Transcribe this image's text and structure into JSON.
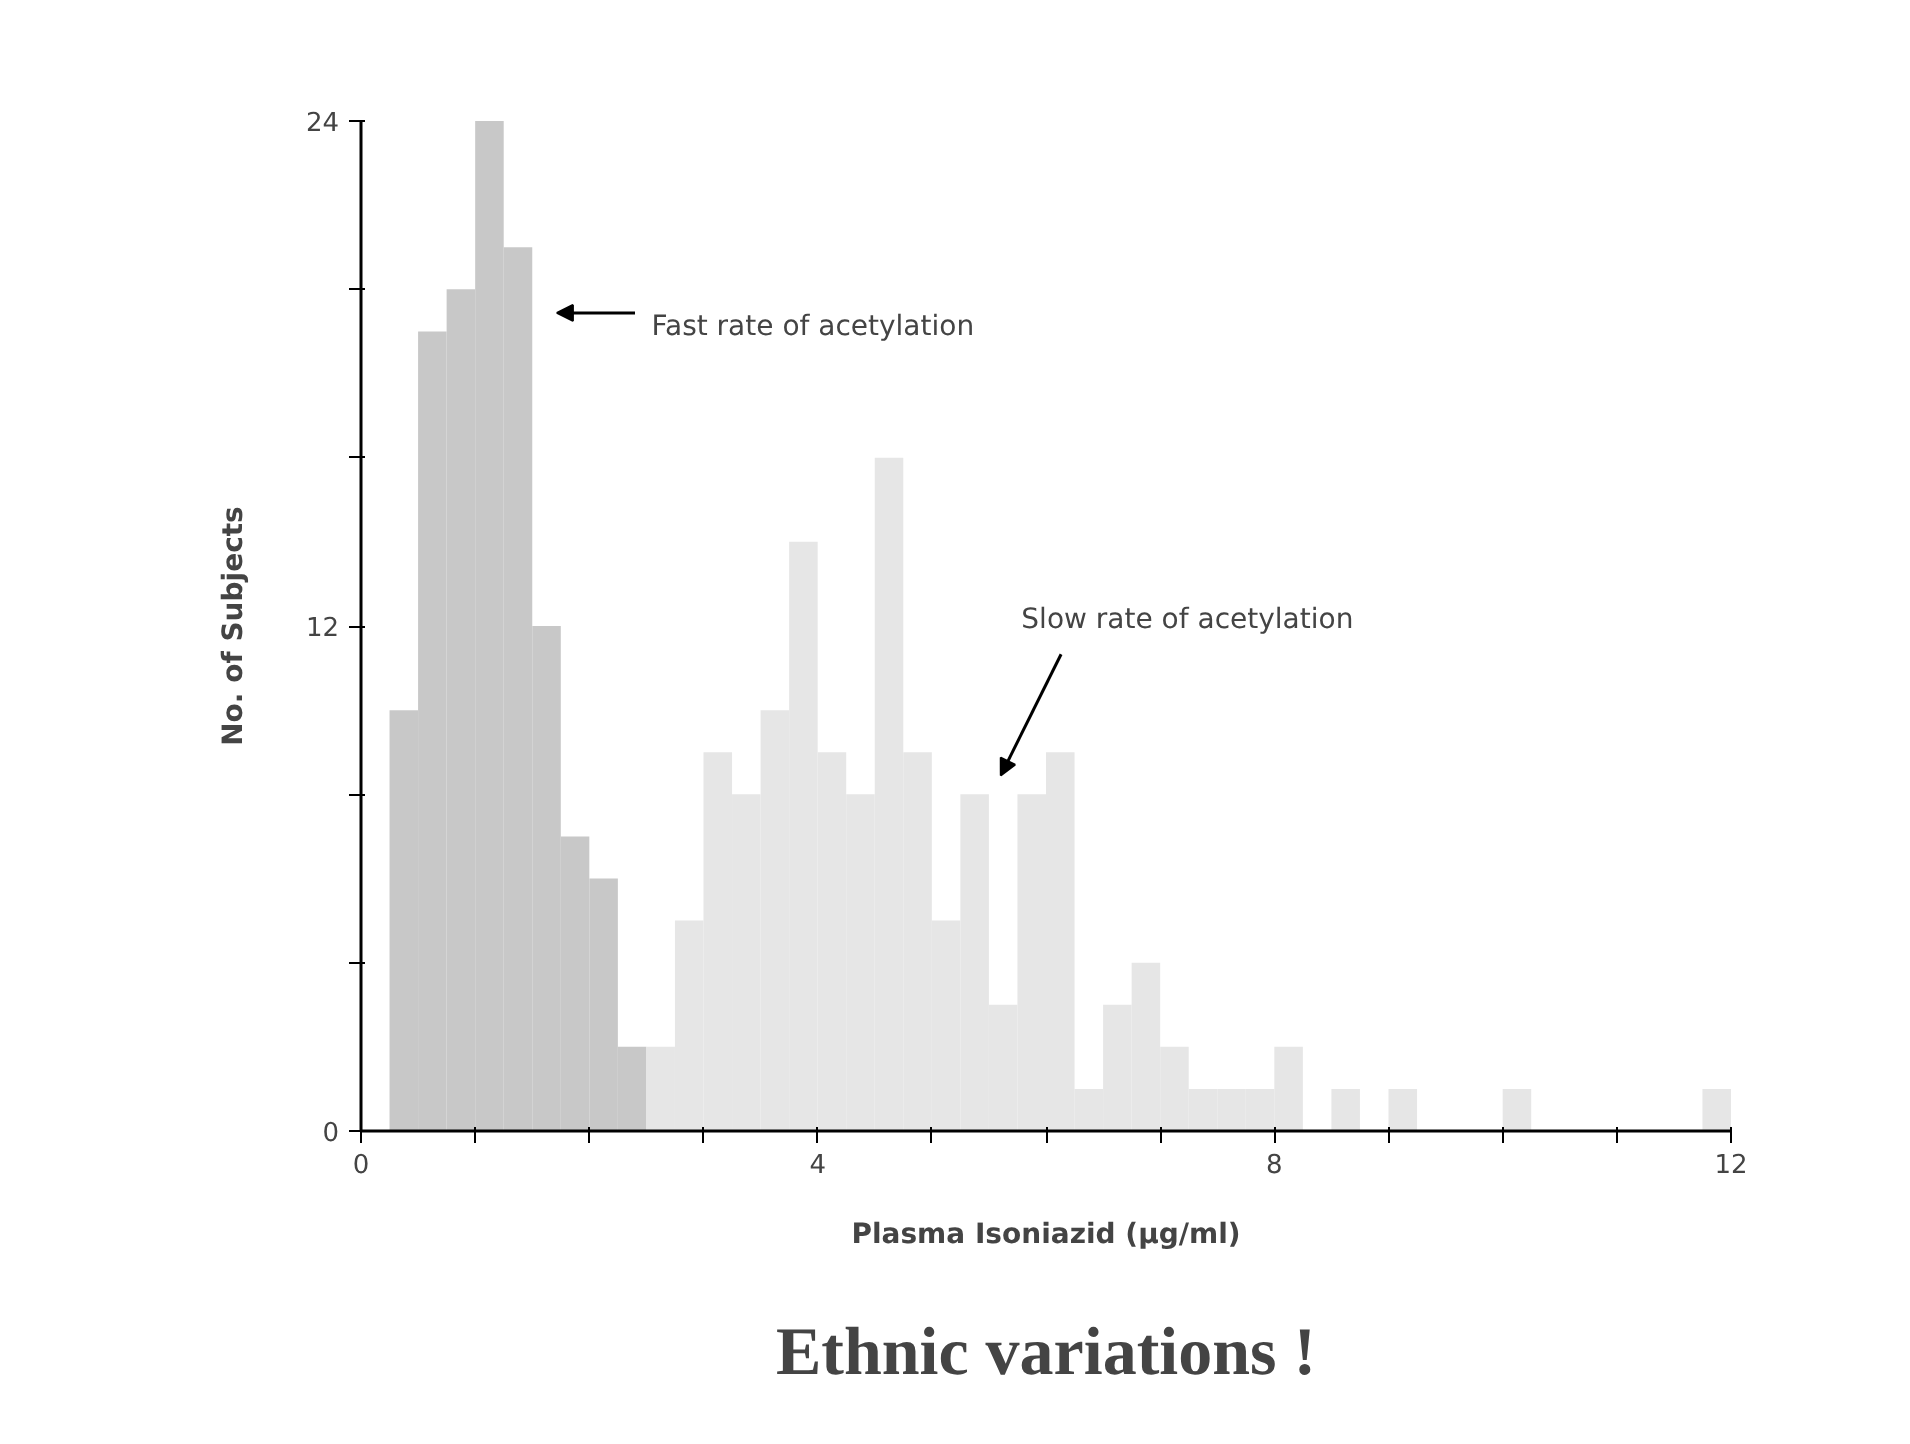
{
  "chart_data": {
    "type": "histogram",
    "title": "Ethnic variations !",
    "xlabel": "Plasma Isoniazid (μg/ml)",
    "ylabel": "No. of Subjects",
    "bins": [
      0.25,
      0.5,
      0.75,
      1.0,
      1.25,
      1.5,
      1.75,
      2.0,
      2.25,
      2.5,
      2.75,
      3.0,
      3.25,
      3.5,
      3.75,
      4.0,
      4.25,
      4.5,
      4.75,
      5.0,
      5.25,
      5.5,
      5.75,
      6.0,
      6.25,
      6.5,
      6.75,
      7.0,
      7.25,
      7.5,
      7.75,
      8.0,
      8.25,
      8.5,
      8.75,
      9.0,
      9.25,
      9.5,
      9.75,
      10.0,
      10.25,
      10.5,
      10.75,
      11.0,
      11.25,
      11.5,
      11.75,
      12.0
    ],
    "values": [
      10,
      19,
      20,
      24,
      21,
      12,
      7,
      6,
      2,
      2,
      5,
      9,
      8,
      10,
      14,
      9,
      8,
      16,
      9,
      5,
      8,
      3,
      8,
      9,
      1,
      3,
      4,
      2,
      1,
      1,
      1,
      2,
      0,
      1,
      0,
      1,
      0,
      0,
      0,
      1,
      0,
      0,
      0,
      0,
      0,
      0,
      1
    ],
    "colors": [
      "#c8c8c8",
      "#c8c8c8",
      "#c8c8c8",
      "#c8c8c8",
      "#c8c8c8",
      "#c8c8c8",
      "#c8c8c8",
      "#c8c8c8",
      "#c8c8c8",
      "#e6e6e6",
      "#e6e6e6",
      "#e6e6e6",
      "#e6e6e6",
      "#e6e6e6",
      "#e6e6e6",
      "#e6e6e6",
      "#e6e6e6",
      "#e6e6e6",
      "#e6e6e6",
      "#e6e6e6",
      "#e6e6e6",
      "#e6e6e6",
      "#e6e6e6",
      "#e6e6e6",
      "#e6e6e6",
      "#e6e6e6",
      "#e6e6e6",
      "#e6e6e6",
      "#e6e6e6",
      "#e6e6e6",
      "#e6e6e6",
      "#e6e6e6",
      "#e6e6e6",
      "#e6e6e6",
      "#e6e6e6",
      "#e6e6e6",
      "#e6e6e6",
      "#e6e6e6",
      "#e6e6e6",
      "#e6e6e6",
      "#e6e6e6",
      "#e6e6e6",
      "#e6e6e6",
      "#e6e6e6",
      "#e6e6e6",
      "#e6e6e6",
      "#e6e6e6"
    ],
    "xlim": [
      0,
      12
    ],
    "ylim": [
      0,
      24
    ],
    "xticks": [
      0,
      {
        "value": 1,
        "label": null
      },
      {
        "value": 2,
        "label": null
      },
      {
        "value": 3,
        "label": null
      },
      4,
      {
        "value": 5,
        "label": null
      },
      {
        "value": 6,
        "label": null
      },
      {
        "value": 7,
        "label": null
      },
      8,
      {
        "value": 9,
        "label": null
      },
      {
        "value": 10,
        "label": null
      },
      {
        "value": 11,
        "label": null
      },
      12
    ],
    "yticks": [
      0,
      {
        "value": 4,
        "label": null
      },
      {
        "value": 8,
        "label": null
      },
      12,
      {
        "value": 16,
        "label": null
      },
      {
        "value": 20,
        "label": null
      },
      24
    ],
    "annotations": [
      "Fast rate of acetylation",
      "Slow rate of acetylation"
    ],
    "grid": false
  }
}
